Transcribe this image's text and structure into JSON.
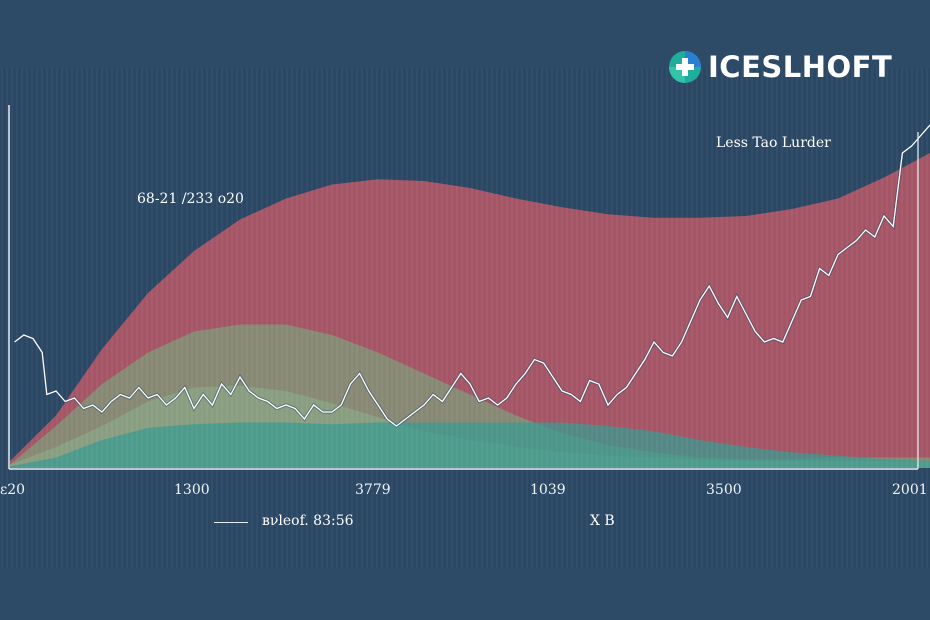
{
  "brand": {
    "name": "ICESLHOFT",
    "icon": "plus-cross-logo-icon"
  },
  "chart_data": {
    "type": "area",
    "annotations": [
      "Less Tao Lurder",
      "68-21 /233 о20"
    ],
    "x_ticks": [
      "ε20",
      "1300",
      "3779",
      "1039",
      "3500",
      "2001"
    ],
    "legend": [
      {
        "marker": "line",
        "label": "вνleof. 83:56"
      },
      {
        "marker": "none",
        "label": "Х B"
      }
    ],
    "y_range": [
      0,
      100
    ],
    "x_range": [
      0,
      100
    ],
    "grid": "vertical stripes",
    "colors": {
      "background": "#2d4a66",
      "red_area": "#c65a66",
      "green_area": "#6fb57f",
      "teal_area": "#3a9a90",
      "line": "#ffffff",
      "axis": "#e9eef3"
    },
    "series": [
      {
        "type": "area",
        "x": [
          0,
          5,
          10,
          15,
          20,
          25,
          30,
          35,
          40,
          45,
          50,
          55,
          60,
          65,
          70,
          75,
          80,
          85,
          90,
          95,
          100
        ],
        "values": [
          2,
          15,
          34,
          50,
          62,
          71,
          77,
          81,
          82.5,
          82,
          80,
          77,
          74.5,
          72.5,
          71.5,
          71.5,
          72,
          74,
          77,
          83,
          90
        ]
      },
      {
        "type": "area",
        "x": [
          0,
          5,
          10,
          15,
          20,
          25,
          30,
          35,
          40,
          45,
          50,
          55,
          60,
          65,
          70,
          75,
          80,
          85,
          90,
          95,
          100
        ],
        "values": [
          1,
          12,
          24,
          33,
          39,
          41,
          41,
          38,
          33,
          27,
          21,
          15,
          10,
          6.5,
          4.5,
          3,
          2.5,
          2.5,
          3,
          3,
          3
        ]
      },
      {
        "type": "area",
        "x": [
          0,
          5,
          10,
          15,
          20,
          25,
          30,
          35,
          40,
          45,
          50,
          55,
          60,
          65,
          70,
          75,
          80,
          85,
          90,
          95,
          100
        ],
        "values": [
          1,
          6,
          12,
          19,
          23,
          23.5,
          22,
          18.5,
          14.5,
          10.5,
          8,
          6,
          4.5,
          3.5,
          3,
          2.5,
          2,
          2,
          2,
          2,
          2
        ]
      },
      {
        "type": "area",
        "x": [
          0,
          5,
          10,
          15,
          20,
          25,
          30,
          35,
          40,
          45,
          50,
          55,
          60,
          65,
          70,
          75,
          80,
          85,
          90,
          95,
          100
        ],
        "values": [
          0.5,
          3,
          8,
          11.5,
          12.5,
          13,
          13,
          12.5,
          13,
          13,
          13,
          13,
          13,
          12,
          10.5,
          8,
          6,
          4.5,
          3.5,
          2.5,
          2
        ]
      },
      {
        "type": "line",
        "x": [
          0.5,
          1.5,
          2.5,
          3.5,
          4,
          5,
          6,
          7,
          8,
          9,
          10,
          11,
          12,
          13,
          14,
          15,
          16,
          17,
          18,
          19,
          20,
          21,
          22,
          23,
          24,
          25,
          26,
          27,
          28,
          29,
          30,
          31,
          32,
          33,
          34,
          35,
          36,
          37,
          38,
          39,
          40,
          41,
          42,
          43,
          44,
          45,
          46,
          47,
          48,
          49,
          50,
          51,
          52,
          53,
          54,
          55,
          56,
          57,
          58,
          59,
          60,
          61,
          62,
          63,
          64,
          65,
          66,
          67,
          68,
          69,
          70,
          71,
          72,
          73,
          74,
          75,
          76,
          77,
          78,
          79,
          80,
          81,
          82,
          83,
          84,
          85,
          86,
          87,
          88,
          89,
          90,
          91,
          92,
          93,
          94,
          95,
          96,
          97,
          98,
          99,
          100
        ],
        "values": [
          36,
          38,
          37,
          33,
          21,
          22,
          19,
          20,
          17,
          18,
          16,
          19,
          21,
          20,
          23,
          20,
          21,
          18,
          20,
          23,
          17,
          21,
          18,
          24,
          21,
          26,
          22,
          20,
          19,
          17,
          18,
          17,
          14,
          18,
          16,
          16,
          18,
          24,
          27,
          22,
          18,
          14,
          12,
          14,
          16,
          18,
          21,
          19,
          23,
          27,
          24,
          19,
          20,
          18,
          20,
          24,
          27,
          31,
          30,
          26,
          22,
          21,
          19,
          25,
          24,
          18,
          21,
          23,
          27,
          31,
          36,
          33,
          32,
          36,
          42,
          48,
          52,
          47,
          43,
          49,
          44,
          39,
          36,
          37,
          36,
          42,
          48,
          49,
          57,
          55,
          61,
          63,
          65,
          68,
          66,
          72,
          69,
          90,
          92,
          95,
          98
        ]
      }
    ]
  }
}
